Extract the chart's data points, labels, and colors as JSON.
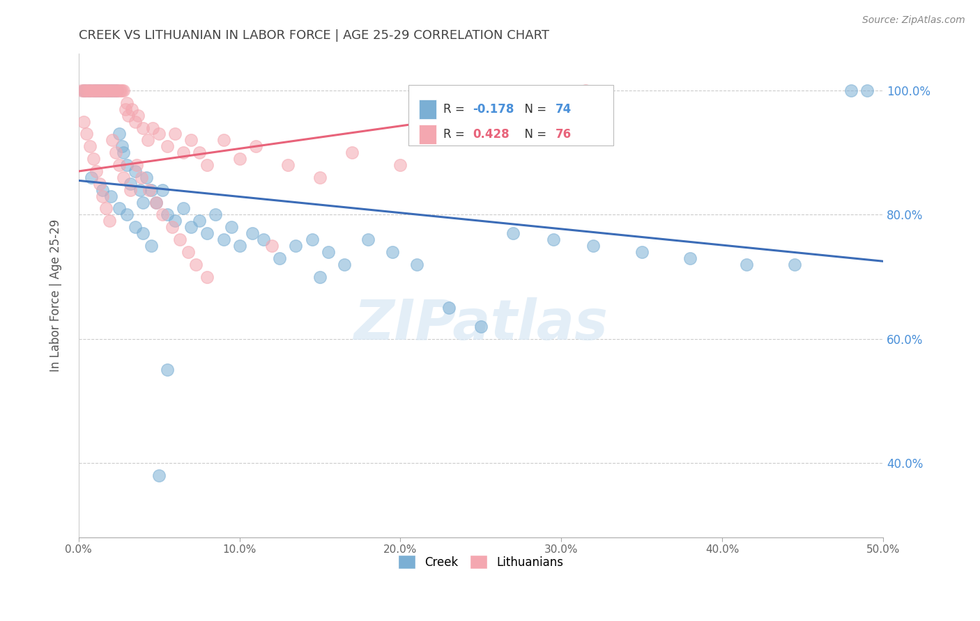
{
  "title": "CREEK VS LITHUANIAN IN LABOR FORCE | AGE 25-29 CORRELATION CHART",
  "source": "Source: ZipAtlas.com",
  "ylabel": "In Labor Force | Age 25-29",
  "xlim": [
    0.0,
    0.5
  ],
  "ylim": [
    0.28,
    1.06
  ],
  "xtick_labels": [
    "0.0%",
    "10.0%",
    "20.0%",
    "30.0%",
    "40.0%",
    "50.0%"
  ],
  "xtick_values": [
    0.0,
    0.1,
    0.2,
    0.3,
    0.4,
    0.5
  ],
  "ytick_labels_right": [
    "40.0%",
    "60.0%",
    "80.0%",
    "100.0%"
  ],
  "ytick_values": [
    0.4,
    0.6,
    0.8,
    1.0
  ],
  "watermark": "ZIPatlas",
  "legend_creek": "Creek",
  "legend_lithuanians": "Lithuanians",
  "creek_R": -0.178,
  "creek_N": 74,
  "lith_R": 0.428,
  "lith_N": 76,
  "creek_color": "#7BAFD4",
  "lith_color": "#F4A7B0",
  "creek_line_color": "#3B6CB7",
  "lith_line_color": "#E8637A",
  "title_color": "#444444",
  "right_label_color": "#4A90D9",
  "background_color": "#FFFFFF",
  "creek_trend_x0": 0.0,
  "creek_trend_x1": 0.5,
  "creek_trend_y0": 0.855,
  "creek_trend_y1": 0.725,
  "lith_trend_x0": 0.0,
  "lith_trend_x1": 0.315,
  "lith_trend_y0": 0.87,
  "lith_trend_y1": 0.985,
  "creek_x": [
    0.003,
    0.004,
    0.006,
    0.007,
    0.009,
    0.01,
    0.011,
    0.012,
    0.013,
    0.014,
    0.015,
    0.016,
    0.017,
    0.018,
    0.019,
    0.02,
    0.021,
    0.022,
    0.023,
    0.024,
    0.025,
    0.027,
    0.028,
    0.03,
    0.032,
    0.035,
    0.038,
    0.04,
    0.042,
    0.045,
    0.048,
    0.052,
    0.055,
    0.06,
    0.065,
    0.07,
    0.075,
    0.08,
    0.085,
    0.09,
    0.095,
    0.1,
    0.108,
    0.115,
    0.125,
    0.135,
    0.145,
    0.155,
    0.165,
    0.18,
    0.195,
    0.21,
    0.23,
    0.25,
    0.27,
    0.295,
    0.32,
    0.35,
    0.38,
    0.415,
    0.445,
    0.48,
    0.008,
    0.015,
    0.02,
    0.025,
    0.03,
    0.035,
    0.04,
    0.045,
    0.05,
    0.055,
    0.15,
    0.49
  ],
  "creek_y": [
    1.0,
    1.0,
    1.0,
    1.0,
    1.0,
    1.0,
    1.0,
    1.0,
    1.0,
    1.0,
    1.0,
    1.0,
    1.0,
    1.0,
    1.0,
    1.0,
    1.0,
    1.0,
    1.0,
    1.0,
    0.93,
    0.91,
    0.9,
    0.88,
    0.85,
    0.87,
    0.84,
    0.82,
    0.86,
    0.84,
    0.82,
    0.84,
    0.8,
    0.79,
    0.81,
    0.78,
    0.79,
    0.77,
    0.8,
    0.76,
    0.78,
    0.75,
    0.77,
    0.76,
    0.73,
    0.75,
    0.76,
    0.74,
    0.72,
    0.76,
    0.74,
    0.72,
    0.65,
    0.62,
    0.77,
    0.76,
    0.75,
    0.74,
    0.73,
    0.72,
    0.72,
    1.0,
    0.86,
    0.84,
    0.83,
    0.81,
    0.8,
    0.78,
    0.77,
    0.75,
    0.38,
    0.55,
    0.7,
    1.0
  ],
  "lith_x": [
    0.002,
    0.003,
    0.004,
    0.005,
    0.006,
    0.007,
    0.008,
    0.009,
    0.01,
    0.011,
    0.012,
    0.013,
    0.014,
    0.015,
    0.016,
    0.017,
    0.018,
    0.019,
    0.02,
    0.021,
    0.022,
    0.023,
    0.024,
    0.025,
    0.026,
    0.027,
    0.028,
    0.029,
    0.03,
    0.031,
    0.033,
    0.035,
    0.037,
    0.04,
    0.043,
    0.046,
    0.05,
    0.055,
    0.06,
    0.065,
    0.07,
    0.075,
    0.08,
    0.09,
    0.1,
    0.11,
    0.13,
    0.15,
    0.17,
    0.2,
    0.003,
    0.005,
    0.007,
    0.009,
    0.011,
    0.013,
    0.015,
    0.017,
    0.019,
    0.021,
    0.023,
    0.025,
    0.028,
    0.032,
    0.036,
    0.039,
    0.044,
    0.048,
    0.052,
    0.058,
    0.063,
    0.068,
    0.073,
    0.08,
    0.12,
    0.315
  ],
  "lith_y": [
    1.0,
    1.0,
    1.0,
    1.0,
    1.0,
    1.0,
    1.0,
    1.0,
    1.0,
    1.0,
    1.0,
    1.0,
    1.0,
    1.0,
    1.0,
    1.0,
    1.0,
    1.0,
    1.0,
    1.0,
    1.0,
    1.0,
    1.0,
    1.0,
    1.0,
    1.0,
    1.0,
    0.97,
    0.98,
    0.96,
    0.97,
    0.95,
    0.96,
    0.94,
    0.92,
    0.94,
    0.93,
    0.91,
    0.93,
    0.9,
    0.92,
    0.9,
    0.88,
    0.92,
    0.89,
    0.91,
    0.88,
    0.86,
    0.9,
    0.88,
    0.95,
    0.93,
    0.91,
    0.89,
    0.87,
    0.85,
    0.83,
    0.81,
    0.79,
    0.92,
    0.9,
    0.88,
    0.86,
    0.84,
    0.88,
    0.86,
    0.84,
    0.82,
    0.8,
    0.78,
    0.76,
    0.74,
    0.72,
    0.7,
    0.75,
    1.0
  ]
}
